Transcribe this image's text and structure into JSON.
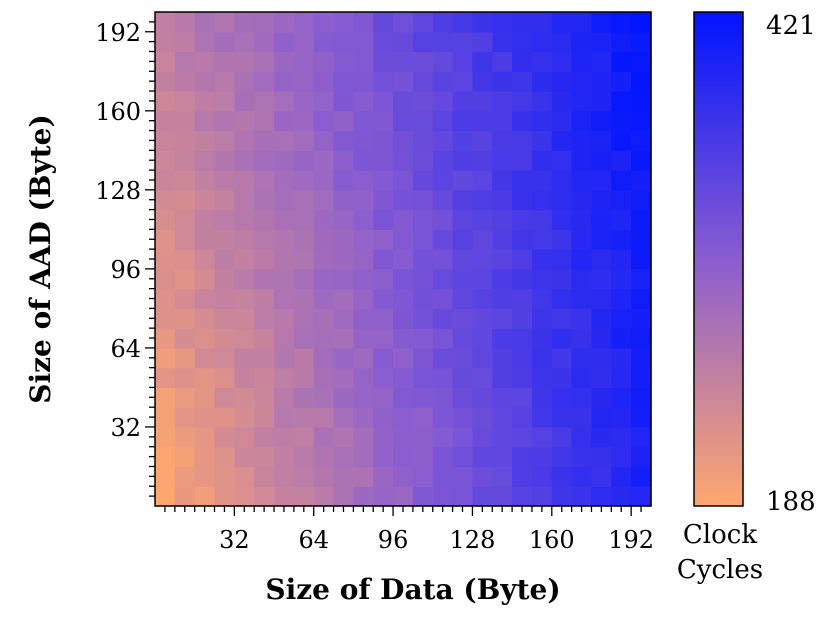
{
  "chart_data": {
    "type": "heatmap",
    "xlabel": "Size of Data (Byte)",
    "ylabel": "Size of AAD (Byte)",
    "x_ticks": [
      "32",
      "64",
      "96",
      "128",
      "160",
      "192"
    ],
    "y_ticks": [
      "32",
      "64",
      "96",
      "128",
      "160",
      "192"
    ],
    "x_tick_values": [
      32,
      64,
      96,
      128,
      160,
      192
    ],
    "y_tick_values": [
      32,
      64,
      96,
      128,
      160,
      192
    ],
    "xlim": [
      0,
      200
    ],
    "ylim": [
      0,
      200
    ],
    "grid_step": 8,
    "colorbar": {
      "min": 188,
      "max": 421,
      "min_label": "188",
      "max_label": "421",
      "title_line1": "Clock",
      "title_line2": "Cycles",
      "low_color": "#ffa76e",
      "high_color": "#0014ff"
    },
    "value_model": "approximate: clock cycles grow mainly with data size and slightly with AAD size",
    "estimated_corners": {
      "data_0_aad_0": 188,
      "data_200_aad_0": 400,
      "data_0_aad_200": 250,
      "data_200_aad_200": 421
    }
  }
}
